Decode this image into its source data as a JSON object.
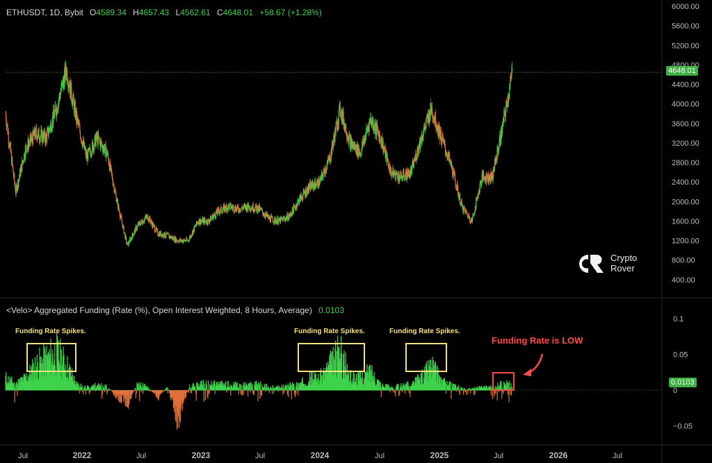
{
  "header": {
    "symbol": "ETHUSDT, 1D, Bybit",
    "open_label": "O",
    "open": "4589.34",
    "high_label": "H",
    "high": "4657.43",
    "low_label": "L",
    "low": "4562.61",
    "close_label": "C",
    "close": "4648.01",
    "change": "+58.67 (+1.28%)"
  },
  "indicator": {
    "title": "<Velo> Aggregated Funding (Rate (%), Open Interest Weighted, 8 Hours, Average)",
    "value": "0.0103"
  },
  "logo": {
    "line1": "Crypto",
    "line2": "Rover"
  },
  "annotations": {
    "spike1": "Funding Rate Spikes.",
    "spike2": "Funding Rate Spikes.",
    "spike3": "Funding Rate Spikes.",
    "low": "Funding Rate is LOW"
  },
  "price_badge": "4648.01",
  "funding_badge": "0.0103",
  "colors": {
    "up": "#3fd24b",
    "down": "#e0713a",
    "box": "#f3e37a",
    "alert": "#ff4a48"
  },
  "chart_data": [
    {
      "type": "line",
      "title": "ETHUSDT, 1D, Bybit",
      "x": [
        "2021-06",
        "2021-07",
        "2021-08",
        "2021-09",
        "2021-10",
        "2021-11",
        "2021-12",
        "2022-01",
        "2022-02",
        "2022-03",
        "2022-04",
        "2022-05",
        "2022-06",
        "2022-07",
        "2022-08",
        "2022-09",
        "2022-10",
        "2022-11",
        "2022-12",
        "2023-01",
        "2023-02",
        "2023-03",
        "2023-04",
        "2023-05",
        "2023-06",
        "2023-07",
        "2023-08",
        "2023-09",
        "2023-10",
        "2023-11",
        "2023-12",
        "2024-01",
        "2024-02",
        "2024-03",
        "2024-04",
        "2024-05",
        "2024-06",
        "2024-07",
        "2024-08",
        "2024-09",
        "2024-10",
        "2024-11",
        "2024-12",
        "2025-01",
        "2025-02",
        "2025-03",
        "2025-04",
        "2025-05",
        "2025-06",
        "2025-07",
        "2025-08"
      ],
      "series": [
        {
          "values": [
            3800,
            2200,
            3100,
            3400,
            3300,
            3900,
            4700,
            3700,
            2900,
            3300,
            3000,
            2000,
            1100,
            1500,
            1700,
            1350,
            1300,
            1200,
            1200,
            1600,
            1600,
            1800,
            1900,
            1850,
            1900,
            1850,
            1650,
            1600,
            1700,
            2050,
            2300,
            2400,
            2900,
            3900,
            3200,
            3000,
            3700,
            3300,
            2600,
            2500,
            2600,
            3300,
            3900,
            3300,
            2700,
            1900,
            1600,
            2500,
            2500,
            3500,
            4648
          ]
        }
      ],
      "ylim": [
        0,
        6000
      ],
      "yticks": [
        "6000.00",
        "5600.00",
        "5200.00",
        "4800.00",
        "4400.00",
        "4000.00",
        "3600.00",
        "3200.00",
        "2800.00",
        "2400.00",
        "2000.00",
        "1600.00",
        "1200.00",
        "800.00",
        "400.00"
      ]
    },
    {
      "type": "area",
      "title": "<Velo> Aggregated Funding (Rate (%), Open Interest Weighted, 8 Hours, Average)",
      "x": [
        "2021-06",
        "2021-07",
        "2021-08",
        "2021-09",
        "2021-10",
        "2021-11",
        "2021-12",
        "2022-01",
        "2022-02",
        "2022-03",
        "2022-04",
        "2022-05",
        "2022-06",
        "2022-07",
        "2022-08",
        "2022-09",
        "2022-10",
        "2022-11",
        "2022-12",
        "2023-01",
        "2023-02",
        "2023-03",
        "2023-04",
        "2023-05",
        "2023-06",
        "2023-07",
        "2023-08",
        "2023-09",
        "2023-10",
        "2023-11",
        "2023-12",
        "2024-01",
        "2024-02",
        "2024-03",
        "2024-04",
        "2024-05",
        "2024-06",
        "2024-07",
        "2024-08",
        "2024-09",
        "2024-10",
        "2024-11",
        "2024-12",
        "2025-01",
        "2025-02",
        "2025-03",
        "2025-04",
        "2025-05",
        "2025-06",
        "2025-07",
        "2025-08"
      ],
      "series": [
        {
          "values": [
            0.02,
            0.01,
            0.02,
            0.04,
            0.05,
            0.06,
            0.04,
            0.01,
            0.005,
            0.008,
            0.006,
            -0.01,
            -0.02,
            0.01,
            0.005,
            -0.01,
            0.005,
            -0.05,
            0.005,
            0.01,
            0.01,
            0.01,
            0.01,
            0.008,
            0.008,
            0.01,
            0.005,
            0.005,
            0.008,
            0.01,
            0.02,
            0.02,
            0.04,
            0.06,
            0.02,
            0.02,
            0.03,
            0.01,
            0.005,
            0.008,
            0.01,
            0.02,
            0.04,
            0.015,
            0.008,
            0.004,
            0.003,
            0.005,
            0.006,
            0.01,
            0.0103
          ]
        }
      ],
      "ylim": [
        -0.075,
        0.11
      ],
      "yticks": [
        "0.1",
        "0.05",
        "0",
        "−0.05"
      ]
    }
  ],
  "xaxis": {
    "labels": [
      "Jul",
      "2022",
      "Jul",
      "2023",
      "Jul",
      "2024",
      "Jul",
      "2025",
      "Jul",
      "2026",
      "Jul"
    ]
  }
}
